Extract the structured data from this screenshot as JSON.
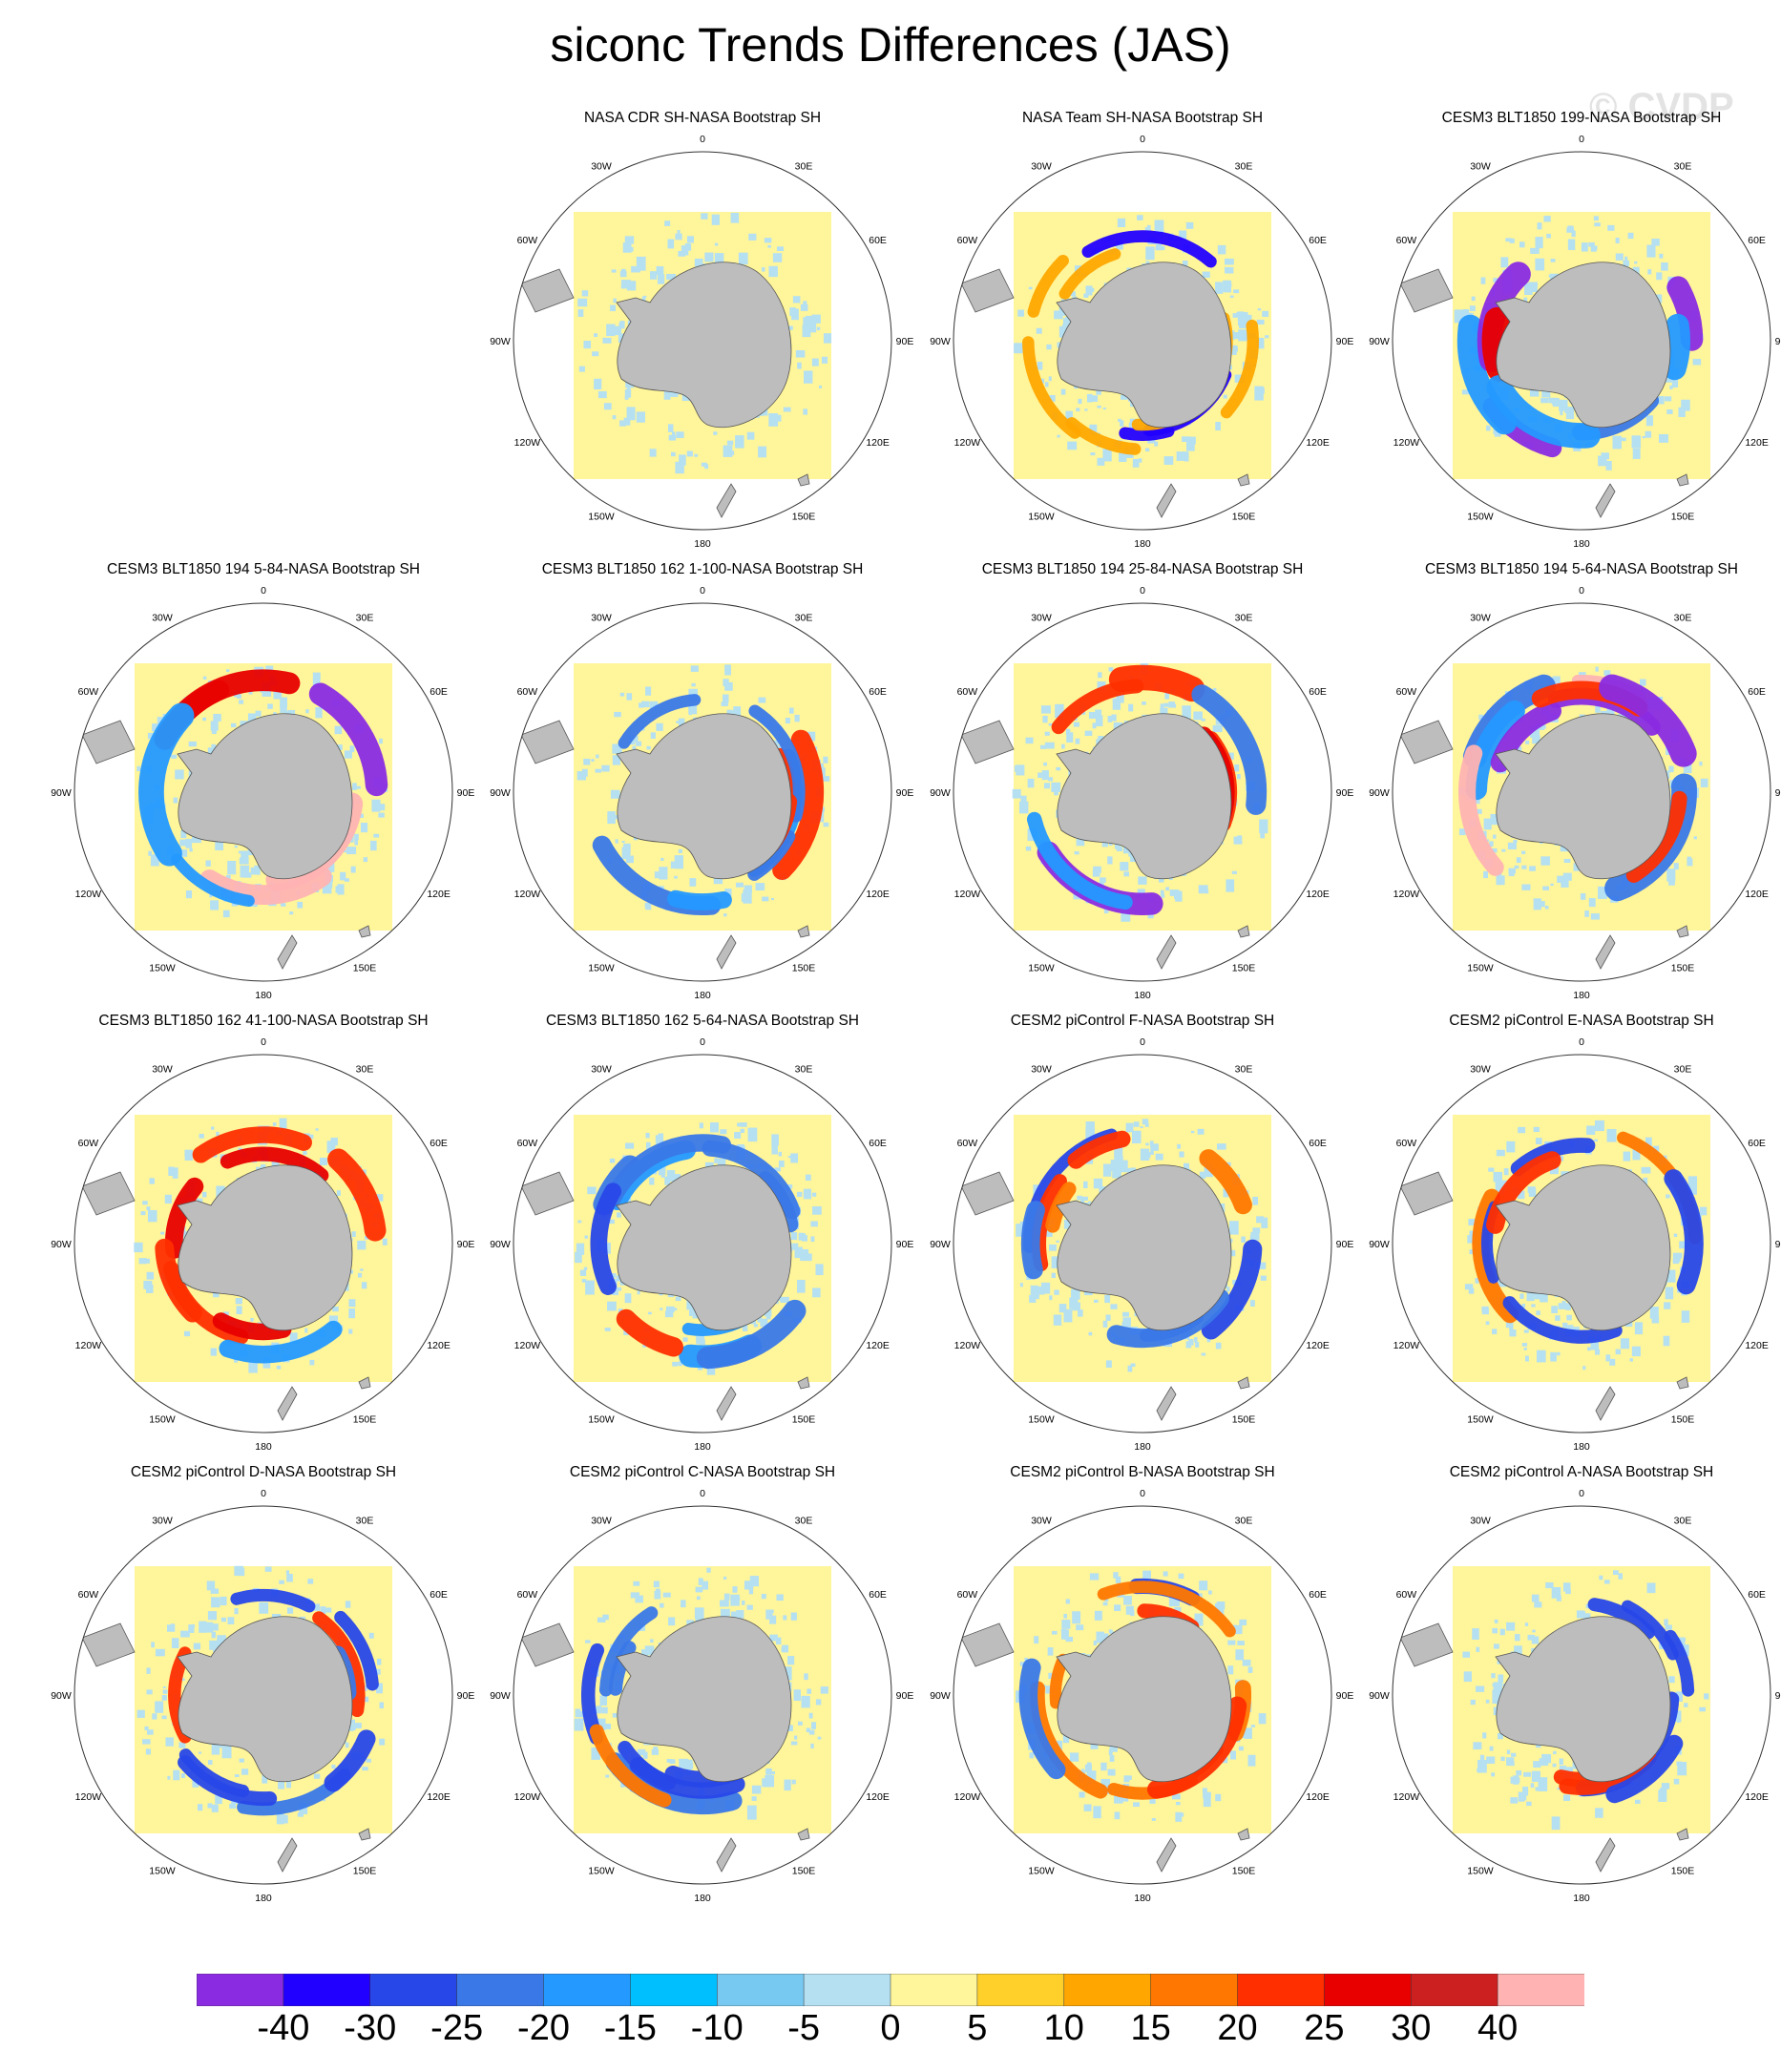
{
  "title": "siconc Trends Differences (JAS)",
  "watermark": "© CVDP",
  "lon_labels": [
    "0",
    "30E",
    "60E",
    "90E",
    "120E",
    "150E",
    "180",
    "150W",
    "120W",
    "90W",
    "60W",
    "30W"
  ],
  "chart_data": {
    "type": "heatmap",
    "title": "siconc Trends Differences (JAS)",
    "projection": "south-polar-stereographic",
    "panels": [
      {
        "title": "NASA CDR SH-NASA Bootstrap SH",
        "strength": 0.0,
        "variant": 0
      },
      {
        "title": "NASA Team SH-NASA Bootstrap SH",
        "strength": 0.05,
        "variant": 1
      },
      {
        "title": "CESM3 BLT1850 199-NASA Bootstrap SH",
        "strength": 1.0,
        "variant": 2
      },
      {
        "title": "CESM3 BLT1850 194 5-84-NASA Bootstrap SH",
        "strength": 1.0,
        "variant": 3
      },
      {
        "title": "CESM3 BLT1850 162 1-100-NASA Bootstrap SH",
        "strength": 0.8,
        "variant": 4
      },
      {
        "title": "CESM3 BLT1850 194 25-84-NASA Bootstrap SH",
        "strength": 0.95,
        "variant": 5
      },
      {
        "title": "CESM3 BLT1850 194 5-64-NASA Bootstrap SH",
        "strength": 1.0,
        "variant": 6
      },
      {
        "title": "CESM3 BLT1850 162 41-100-NASA Bootstrap SH",
        "strength": 0.75,
        "variant": 7
      },
      {
        "title": "CESM3 BLT1850 162 5-64-NASA Bootstrap SH",
        "strength": 0.75,
        "variant": 8
      },
      {
        "title": "CESM2 piControl F-NASA Bootstrap SH",
        "strength": 0.6,
        "variant": 9
      },
      {
        "title": "CESM2 piControl E-NASA Bootstrap SH",
        "strength": 0.5,
        "variant": 10
      },
      {
        "title": "CESM2 piControl D-NASA Bootstrap SH",
        "strength": 0.55,
        "variant": 11
      },
      {
        "title": "CESM2 piControl C-NASA Bootstrap SH",
        "strength": 0.55,
        "variant": 12
      },
      {
        "title": "CESM2 piControl B-NASA Bootstrap SH",
        "strength": 0.55,
        "variant": 13
      },
      {
        "title": "CESM2 piControl A-NASA Bootstrap SH",
        "strength": 0.5,
        "variant": 14
      }
    ],
    "colorbar": {
      "colors": [
        "#8a2be2",
        "#2200ff",
        "#2847e8",
        "#3a78e8",
        "#2499ff",
        "#00bfff",
        "#78c9f2",
        "#b4e0f2",
        "#fff59a",
        "#ffd02a",
        "#ffa600",
        "#ff7700",
        "#ff2f00",
        "#e80000",
        "#cc1f1f",
        "#ffb3b3"
      ],
      "labels": [
        "-40",
        "-30",
        "-25",
        "-20",
        "-15",
        "-10",
        "-5",
        "0",
        "5",
        "10",
        "15",
        "20",
        "25",
        "30",
        "40"
      ]
    }
  }
}
